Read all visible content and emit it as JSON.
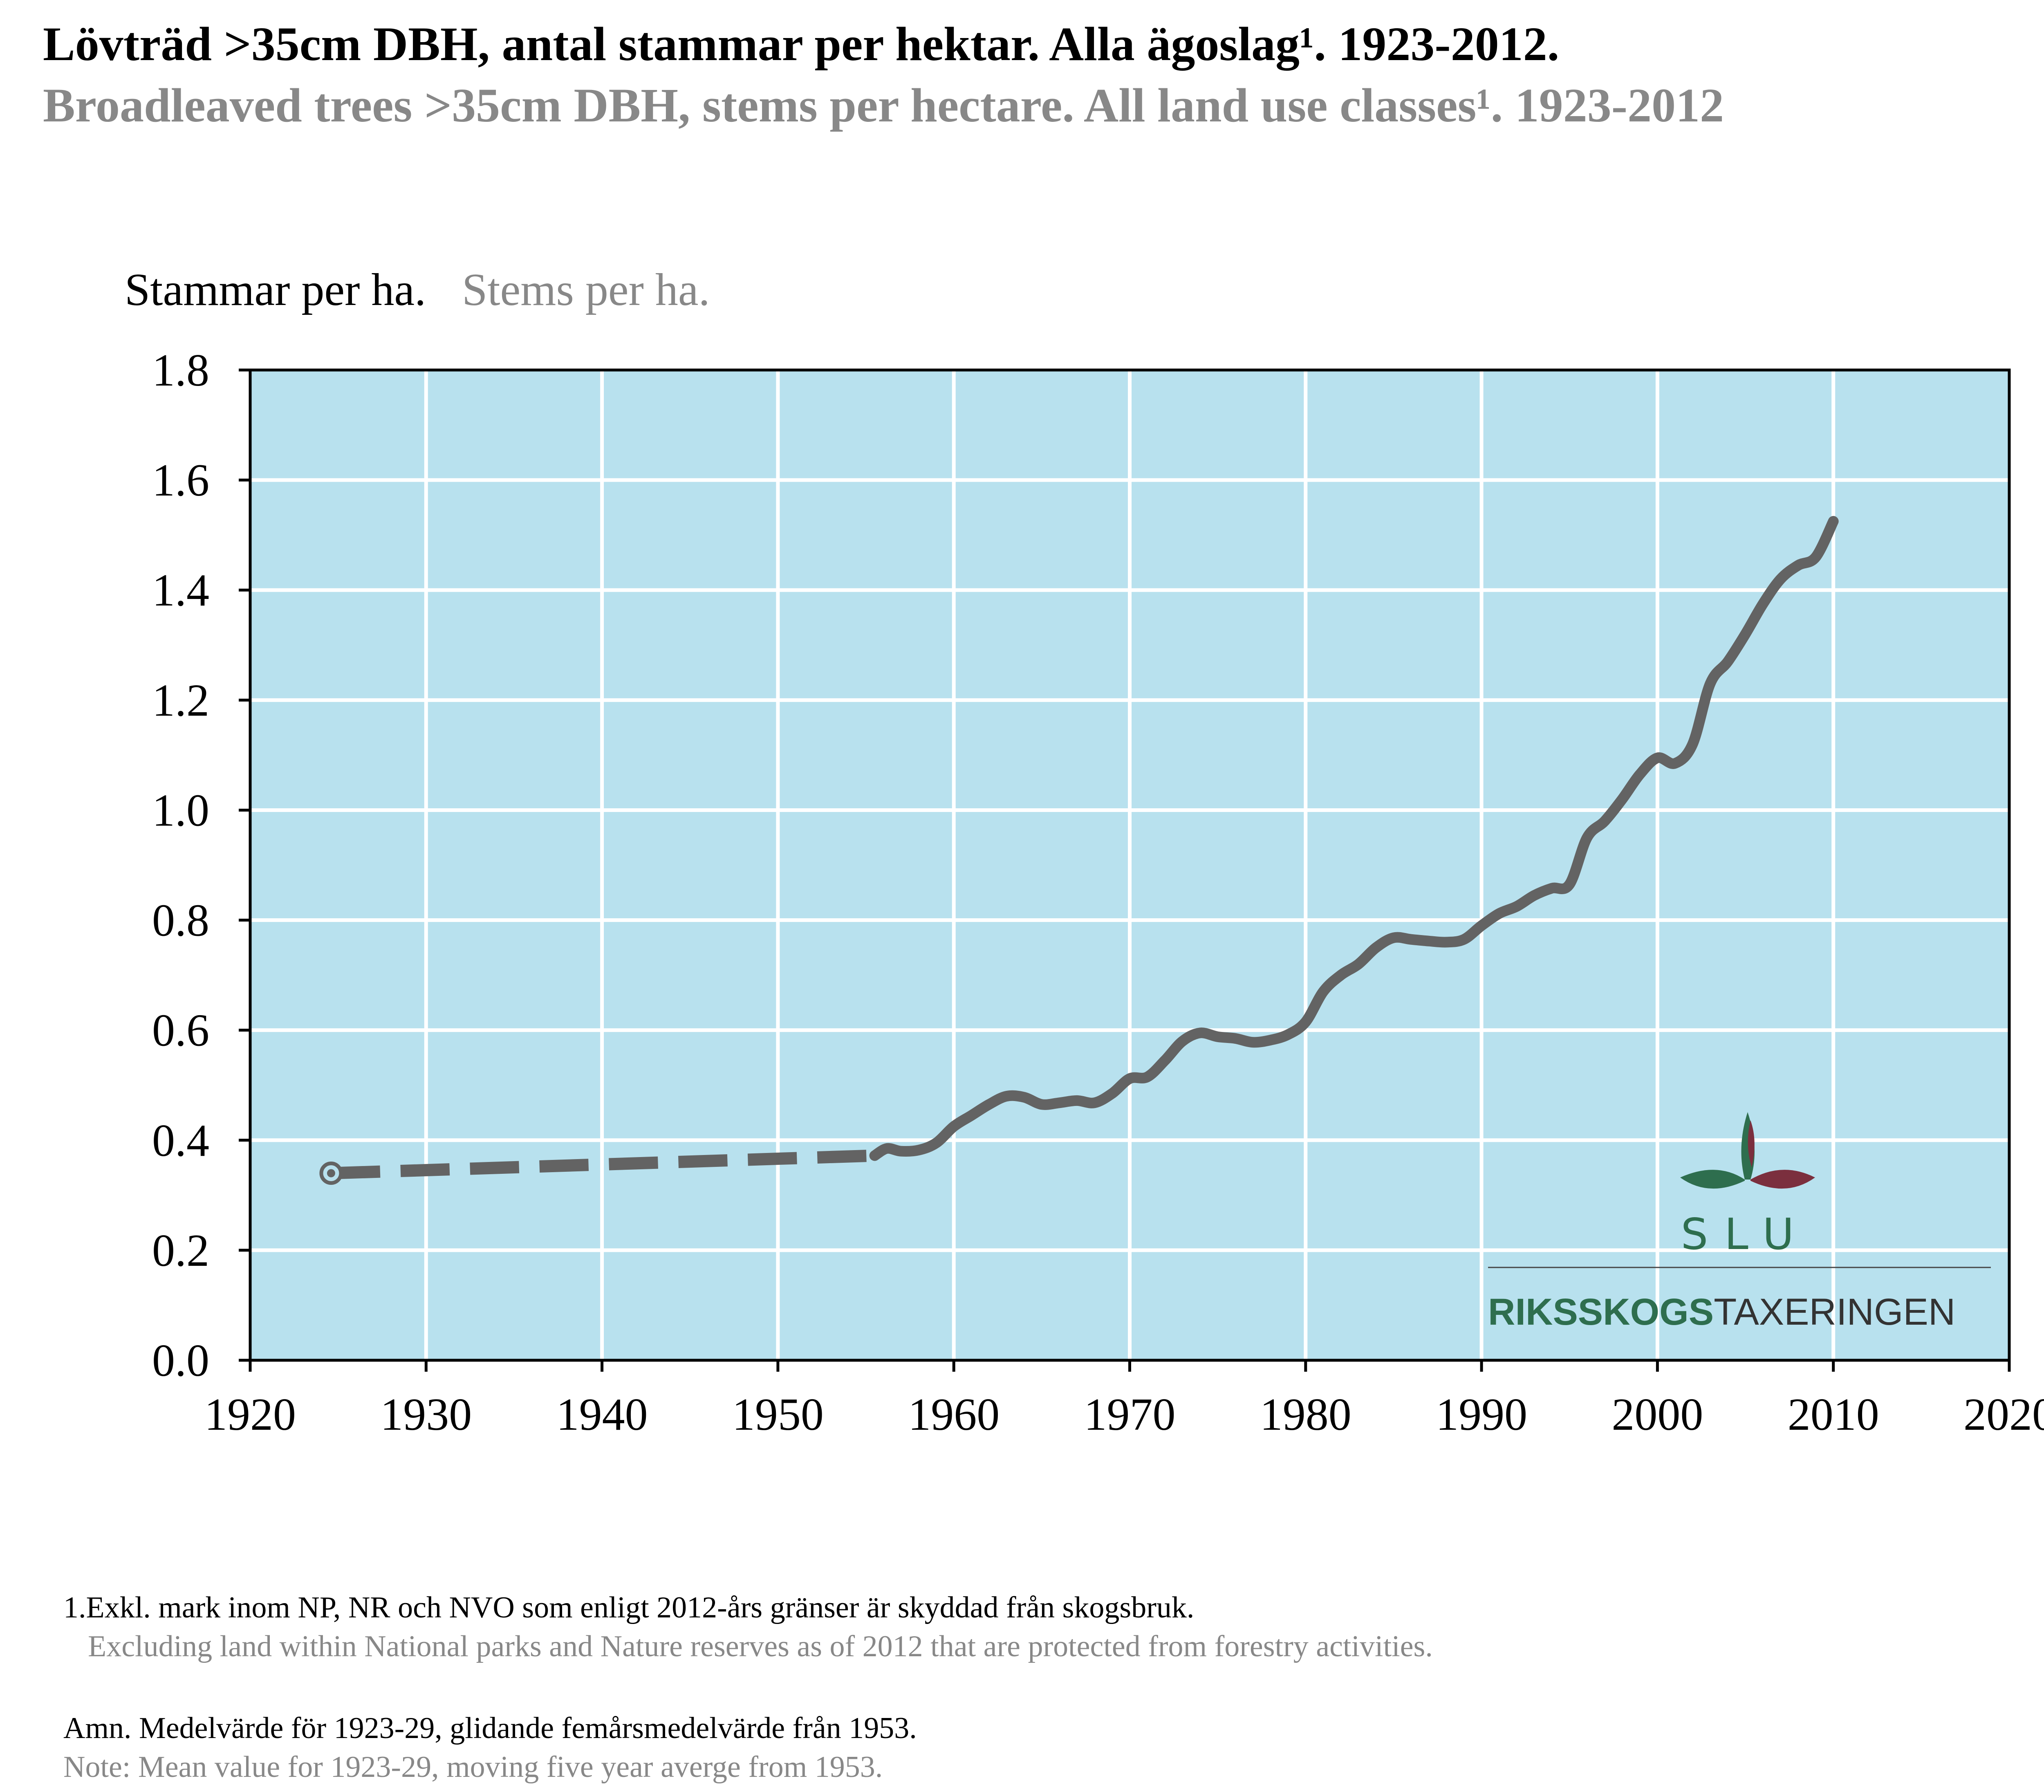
{
  "title_sv": "Lövträd >35cm DBH, antal stammar per hektar. Alla ägoslag¹. 1923-2012.",
  "title_en": "Broadleaved trees >35cm DBH, stems per hectare. All land use classes¹. 1923-2012",
  "unit_sv": "Stammar per ha.",
  "unit_en": "Stems per ha.",
  "colors": {
    "plot_bg": "#b8e1ee",
    "grid": "#ffffff",
    "line": "#636363",
    "slu_green": "#2e6e4e",
    "slu_red": "#7b2f3e"
  },
  "logo": {
    "slu": "SLU",
    "brand_bold": "RIKSSKOGS",
    "brand_light": "TAXERINGEN"
  },
  "footnote_sv": "1.Exkl. mark inom NP, NR och NVO som enligt 2012-års gränser är skyddad från skogsbruk.",
  "footnote_en": "Excluding land within National parks and Nature reserves as of 2012 that are protected from forestry activities.",
  "note_sv": "Amn. Medelvärde för 1923-29, glidande femårsmedelvärde från 1953.",
  "note_en": "Note: Mean value for 1923-29, moving five year averge from 1953.",
  "chart_data": {
    "type": "line",
    "xlim": [
      1920,
      2020
    ],
    "ylim": [
      0,
      1.8
    ],
    "xticks": [
      "1920",
      "1930",
      "1940",
      "1950",
      "1960",
      "1970",
      "1980",
      "1990",
      "2000",
      "2010",
      "2020"
    ],
    "yticks": [
      "0.0",
      "0.2",
      "0.4",
      "0.6",
      "0.8",
      "1.0",
      "1.2",
      "1.4",
      "1.6",
      "1.8"
    ],
    "grid": true,
    "point_1923_29": {
      "x": 1924.6,
      "y": 0.34
    },
    "dashed_segment": [
      [
        1924.6,
        0.34
      ],
      [
        1955.5,
        0.372
      ]
    ],
    "series": [
      {
        "x": [
          1955.5,
          1956.2,
          1957,
          1958,
          1959,
          1960,
          1961,
          1962,
          1963,
          1964,
          1965,
          1966,
          1967,
          1968,
          1969,
          1970,
          1971,
          1972,
          1973,
          1974,
          1975,
          1976,
          1977,
          1978,
          1979,
          1980,
          1981,
          1982,
          1983,
          1984,
          1985,
          1986,
          1987,
          1988,
          1989,
          1990,
          1991,
          1992,
          1993,
          1994,
          1995,
          1996,
          1997,
          1998,
          1999,
          2000,
          2001,
          2002,
          2003,
          2004,
          2005,
          2006,
          2007,
          2008,
          2009,
          2010
        ],
        "values": [
          0.372,
          0.385,
          0.38,
          0.382,
          0.395,
          0.425,
          0.445,
          0.465,
          0.48,
          0.478,
          0.465,
          0.468,
          0.472,
          0.468,
          0.485,
          0.512,
          0.515,
          0.545,
          0.58,
          0.595,
          0.588,
          0.585,
          0.578,
          0.582,
          0.592,
          0.615,
          0.67,
          0.7,
          0.72,
          0.75,
          0.768,
          0.765,
          0.762,
          0.76,
          0.765,
          0.79,
          0.812,
          0.825,
          0.845,
          0.858,
          0.865,
          0.95,
          0.98,
          1.02,
          1.065,
          1.095,
          1.085,
          1.12,
          1.23,
          1.27,
          1.32,
          1.375,
          1.42,
          1.445,
          1.46,
          1.525
        ]
      }
    ]
  }
}
